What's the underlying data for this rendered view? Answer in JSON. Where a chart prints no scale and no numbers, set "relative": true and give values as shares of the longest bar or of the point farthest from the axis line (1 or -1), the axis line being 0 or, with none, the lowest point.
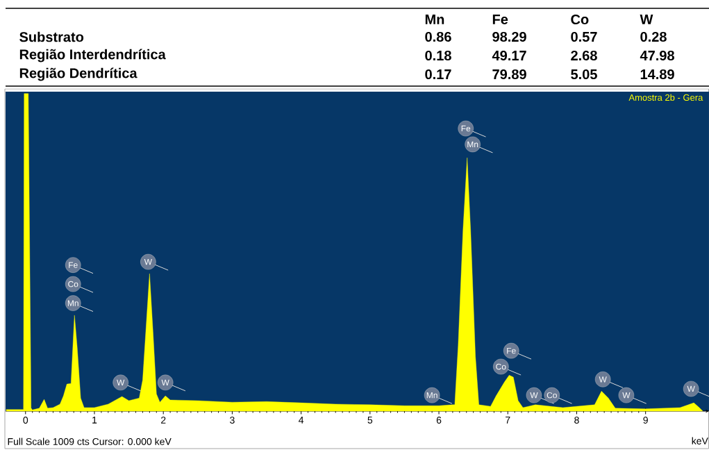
{
  "chart_data": [
    {
      "type": "other",
      "annotations": [
        "Mn",
        "Fe",
        "Co",
        "W",
        "Substrato",
        "0.86",
        "98.29",
        "0.57",
        "0.28",
        "Região Interdendrítica",
        "0.18",
        "49.17",
        "2.68",
        "47.98",
        "Região Dendrítica",
        "0.17",
        "79.89",
        "5.05",
        "14.89"
      ]
    },
    {
      "type": "area",
      "relative": true,
      "xlabel": "keV",
      "xlim": [
        -0.29,
        9.92
      ],
      "xticks": [
        0,
        1,
        2,
        3,
        4,
        5,
        6,
        7,
        8,
        9
      ],
      "color": "#ffff00",
      "x": [
        -0.28,
        -0.03,
        -0.02,
        0.04,
        0.08,
        0.1,
        0.2,
        0.27,
        0.32,
        0.4,
        0.5,
        0.55,
        0.6,
        0.66,
        0.71,
        0.75,
        0.8,
        0.85,
        1.0,
        1.2,
        1.4,
        1.5,
        1.65,
        1.7,
        1.8,
        1.85,
        1.9,
        1.95,
        2.03,
        2.1,
        2.5,
        3.0,
        3.5,
        4.0,
        4.5,
        5.0,
        5.5,
        6.0,
        6.2,
        6.23,
        6.28,
        6.35,
        6.41,
        6.46,
        6.53,
        6.58,
        6.75,
        6.83,
        6.95,
        7.02,
        7.08,
        7.15,
        7.22,
        7.4,
        7.8,
        8.26,
        8.36,
        8.46,
        8.56,
        9.0,
        9.5,
        9.7,
        9.78,
        9.83
      ],
      "values": [
        0.005,
        0.005,
        1,
        1,
        0.01,
        0.004,
        0.009,
        0.037,
        0.009,
        0.011,
        0.022,
        0.048,
        0.085,
        0.087,
        0.302,
        0.2,
        0.041,
        0.011,
        0.011,
        0.022,
        0.046,
        0.033,
        0.041,
        0.098,
        0.433,
        0.25,
        0.054,
        0.028,
        0.048,
        0.035,
        0.033,
        0.028,
        0.03,
        0.026,
        0.022,
        0.02,
        0.017,
        0.017,
        0.02,
        0.02,
        0.207,
        0.57,
        0.798,
        0.57,
        0.172,
        0.02,
        0.015,
        0.048,
        0.091,
        0.113,
        0.107,
        0.033,
        0.011,
        0.02,
        0.011,
        0.02,
        0.063,
        0.041,
        0.009,
        0.007,
        0.011,
        0.026,
        0.011,
        0
      ],
      "annotations": [
        "Amostra 2b - Gera",
        "Full Scale 1009 cts  Cursor: 0.000 keV",
        {
          "text": "Mn",
          "x": 0.69,
          "y": 0.34
        },
        {
          "text": "Co",
          "x": 0.69,
          "y": 0.4
        },
        {
          "text": "Fe",
          "x": 0.69,
          "y": 0.46
        },
        {
          "text": "W",
          "x": 1.38,
          "y": 0.09
        },
        {
          "text": "W",
          "x": 1.78,
          "y": 0.47
        },
        {
          "text": "W",
          "x": 2.03,
          "y": 0.09
        },
        {
          "text": "Mn",
          "x": 5.9,
          "y": 0.05
        },
        {
          "text": "Mn",
          "x": 6.49,
          "y": 0.84
        },
        {
          "text": "Fe",
          "x": 6.39,
          "y": 0.89
        },
        {
          "text": "Co",
          "x": 6.9,
          "y": 0.14
        },
        {
          "text": "Fe",
          "x": 7.05,
          "y": 0.19
        },
        {
          "text": "W",
          "x": 7.38,
          "y": 0.05
        },
        {
          "text": "Co",
          "x": 7.64,
          "y": 0.05
        },
        {
          "text": "W",
          "x": 8.38,
          "y": 0.1
        },
        {
          "text": "W",
          "x": 8.72,
          "y": 0.05
        },
        {
          "text": "W",
          "x": 9.66,
          "y": 0.07
        }
      ]
    }
  ]
}
